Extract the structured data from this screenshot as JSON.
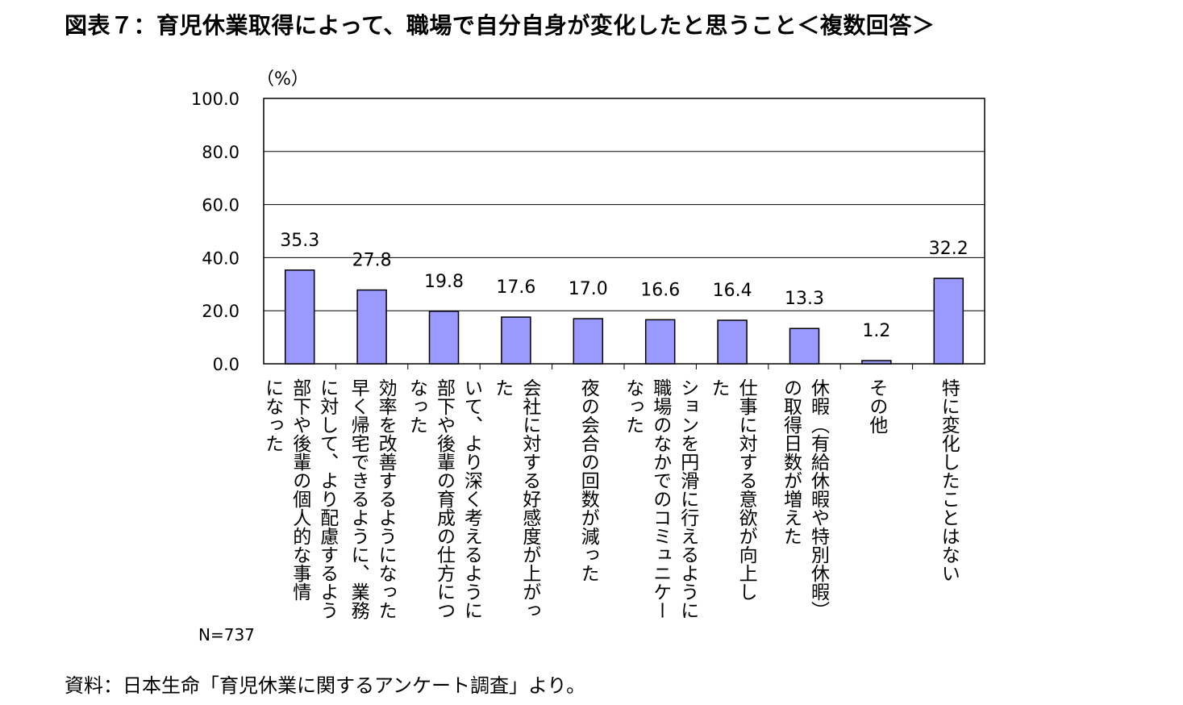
{
  "title": "図表７：育児休業取得によって、職場で自分自身が変化したと思うこと＜複数回答＞",
  "source": "資料：日本生命「育児休業に関するアンケート調査」より。",
  "unit_label": "（%）",
  "sample_label": "N=737",
  "colors": {
    "bar_fill": "#9999ff",
    "bar_stroke": "#000000",
    "grid": "#000000"
  },
  "chart_data": {
    "type": "bar",
    "ylim": [
      0,
      100
    ],
    "yticks": [
      "0.0",
      "20.0",
      "40.0",
      "60.0",
      "80.0",
      "100.0"
    ],
    "grid": true,
    "legend": "none",
    "categories": [
      [
        "に対して、より配慮するよう",
        "部下や後輩の個人的な事情",
        "になった"
      ],
      [
        "効率を改善するようになった",
        "早く帰宅できるように、業務"
      ],
      [
        "いて、より深く考えるように",
        "部下や後輩の育成の仕方につ",
        "なった"
      ],
      [
        "会社に対する好感度が上がっ",
        "た"
      ],
      [
        "夜の会合の回数が減った"
      ],
      [
        "ションを円滑に行えるように",
        "職場のなかでのコミュニケー",
        "なった"
      ],
      [
        "仕事に対する意欲が向上し",
        "た"
      ],
      [
        "休暇（有給休暇や特別休暇）",
        "の取得日数が増えた"
      ],
      [
        "その他"
      ],
      [
        "特に変化したことはない"
      ]
    ],
    "values": [
      35.3,
      27.8,
      19.8,
      17.6,
      17.0,
      16.6,
      16.4,
      13.3,
      1.2,
      32.2
    ],
    "value_labels": [
      "35.3",
      "27.8",
      "19.8",
      "17.6",
      "17.0",
      "16.6",
      "16.4",
      "13.3",
      "1.2",
      "32.2"
    ]
  }
}
